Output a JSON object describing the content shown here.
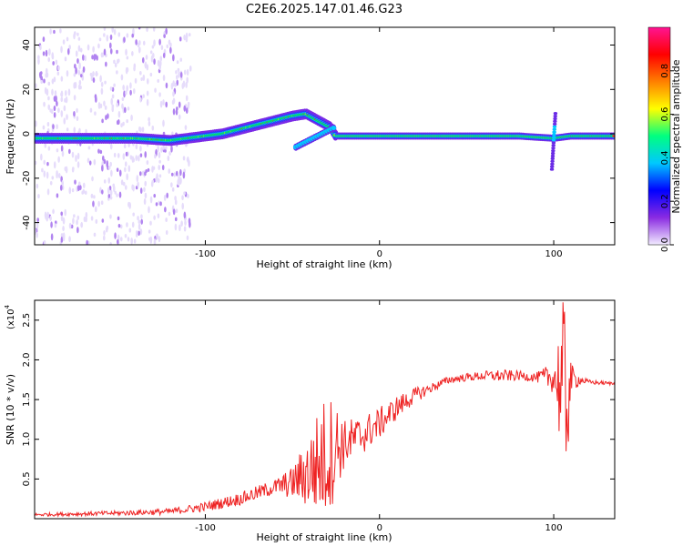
{
  "title": "C2E6.2025.147.01.46.G23",
  "chart_data": [
    {
      "type": "heatmap",
      "xlabel": "Height of straight line (km)",
      "ylabel": "Frequency (Hz)",
      "xlim": [
        -198,
        135
      ],
      "ylim": [
        -50,
        48
      ],
      "xticks": [
        -100,
        0,
        100
      ],
      "yticks": [
        -40,
        -20,
        0,
        20,
        40
      ],
      "colorbar": {
        "label": "Normalized spectral amplitude",
        "range": [
          0,
          1
        ],
        "ticks": [
          "0.0",
          "0.2",
          "0.4",
          "0.6",
          "0.8"
        ],
        "colors": [
          "#f2ecff",
          "#8a2be2",
          "#0000ff",
          "#00c8ff",
          "#00ff80",
          "#ffff00",
          "#ff8000",
          "#ff0000",
          "#ff1493"
        ]
      },
      "trace": {
        "x": [
          -198,
          -180,
          -160,
          -140,
          -120,
          -100,
          -90,
          -80,
          -70,
          -60,
          -50,
          -42,
          -35,
          -28,
          -25,
          -20,
          0,
          20,
          50,
          80,
          100,
          110,
          135
        ],
        "y": [
          -2,
          -2,
          -2,
          -2,
          -3,
          -1,
          0,
          2,
          4,
          6,
          8,
          9,
          6,
          3,
          -1,
          -1,
          -1,
          -1,
          -1,
          -1,
          -2,
          -1,
          -1
        ]
      }
    },
    {
      "type": "line",
      "xlabel": "Height of straight line (km)",
      "ylabel": "SNR (10 * v/v)",
      "yscale_label": "(x10",
      "yscale_exp": "4",
      "xlim": [
        -198,
        135
      ],
      "ylim": [
        0,
        2.75
      ],
      "xticks": [
        -100,
        0,
        100
      ],
      "yticks": [
        0.5,
        1.0,
        1.5,
        2.0,
        2.5
      ],
      "line_color": "#ee2222",
      "envelope": {
        "x": [
          -198,
          -150,
          -120,
          -100,
          -80,
          -60,
          -50,
          -40,
          -35,
          -30,
          -25,
          -20,
          -10,
          0,
          10,
          20,
          30,
          40,
          50,
          60,
          70,
          80,
          90,
          100,
          104,
          106,
          108,
          110,
          115,
          120,
          135
        ],
        "base": [
          0.05,
          0.07,
          0.09,
          0.15,
          0.25,
          0.4,
          0.45,
          0.6,
          0.7,
          0.8,
          0.9,
          0.95,
          1.05,
          1.2,
          1.4,
          1.55,
          1.65,
          1.75,
          1.78,
          1.8,
          1.8,
          1.8,
          1.78,
          1.78,
          1.7,
          1.5,
          1.6,
          1.75,
          1.75,
          1.72,
          1.7
        ],
        "amp": [
          0.02,
          0.03,
          0.04,
          0.06,
          0.08,
          0.1,
          0.2,
          0.5,
          0.7,
          0.8,
          0.6,
          0.3,
          0.25,
          0.2,
          0.15,
          0.1,
          0.06,
          0.05,
          0.05,
          0.06,
          0.08,
          0.06,
          0.06,
          0.2,
          0.9,
          1.3,
          0.9,
          0.2,
          0.06,
          0.03,
          0.02
        ]
      }
    }
  ]
}
